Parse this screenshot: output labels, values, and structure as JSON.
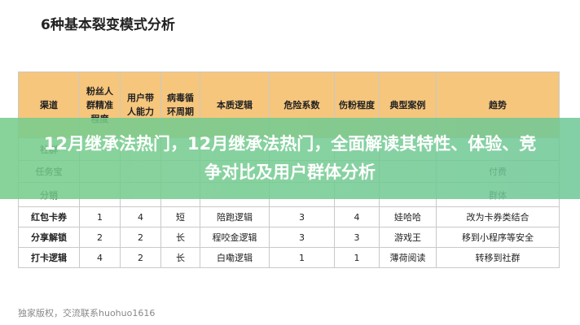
{
  "header": {
    "title": "6种基本裂变模式分析"
  },
  "table": {
    "columns": [
      "渠道",
      "粉丝人群精准程度",
      "用户带人能力",
      "病毒循环周期",
      "本质逻辑",
      "危险系数",
      "伤粉程度",
      "典型案例",
      "趋势"
    ],
    "hidden_rows": [
      {
        "label": "社群"
      },
      {
        "label": "任务宝",
        "trend": "付费"
      },
      {
        "label": "分销",
        "trend": "群体"
      }
    ],
    "rows": [
      [
        "红包卡券",
        "1",
        "4",
        "短",
        "陪跑逻辑",
        "3",
        "4",
        "娃哈哈",
        "改为卡券类结合"
      ],
      [
        "分享解锁",
        "2",
        "2",
        "长",
        "程咬金逻辑",
        "3",
        "3",
        "游戏王",
        "移到小程序等安全"
      ],
      [
        "打卡逻辑",
        "4",
        "2",
        "长",
        "白嘞逻辑",
        "1",
        "1",
        "薄荷阅读",
        "转移到社群"
      ]
    ]
  },
  "overlay": {
    "text": "12月继承法热门，12月继承法热门，全面解读其特性、体验、竞争对比及用户群体分析"
  },
  "footer": {
    "text": "独家版权，交流联系huohuo1616"
  }
}
